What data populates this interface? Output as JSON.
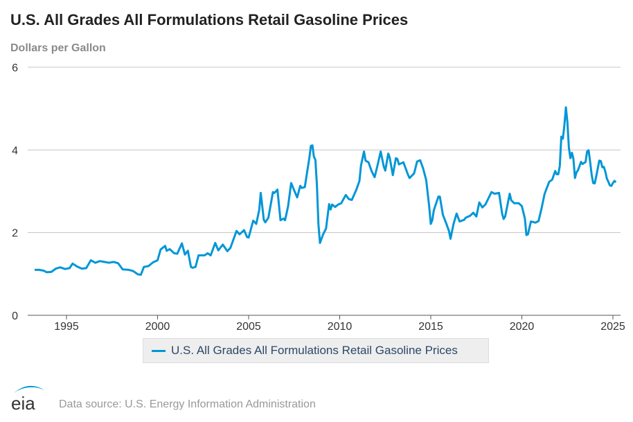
{
  "colors": {
    "line": "#0096d7",
    "grid": "#c4c4c4",
    "axis": "#555555",
    "logo": "#0096d7"
  },
  "chart_data": {
    "type": "line",
    "title": "U.S. All Grades All Formulations Retail Gasoline Prices",
    "ylabel": "Dollars per Gallon",
    "xlabel": "",
    "ylim": [
      0,
      6
    ],
    "yticks": [
      "0",
      "2",
      "4",
      "6"
    ],
    "xticks": [
      "1995",
      "2000",
      "2005",
      "2010",
      "2015",
      "2020",
      "2025"
    ],
    "grid": true,
    "legend_position": "bottom",
    "series": [
      {
        "name": "U.S. All Grades All Formulations Retail Gasoline Prices",
        "points": [
          [
            "1993-04",
            1.1
          ],
          [
            "1993-07",
            1.1
          ],
          [
            "1993-10",
            1.08
          ],
          [
            "1993-12",
            1.04
          ],
          [
            "1994-03",
            1.05
          ],
          [
            "1994-06",
            1.13
          ],
          [
            "1994-09",
            1.16
          ],
          [
            "1994-12",
            1.12
          ],
          [
            "1995-03",
            1.14
          ],
          [
            "1995-05",
            1.25
          ],
          [
            "1995-08",
            1.18
          ],
          [
            "1995-11",
            1.13
          ],
          [
            "1996-02",
            1.14
          ],
          [
            "1996-05",
            1.33
          ],
          [
            "1996-08",
            1.27
          ],
          [
            "1996-11",
            1.31
          ],
          [
            "1997-02",
            1.29
          ],
          [
            "1997-05",
            1.27
          ],
          [
            "1997-08",
            1.29
          ],
          [
            "1997-11",
            1.26
          ],
          [
            "1998-02",
            1.11
          ],
          [
            "1998-06",
            1.1
          ],
          [
            "1998-09",
            1.07
          ],
          [
            "1998-12",
            0.99
          ],
          [
            "1999-02",
            0.98
          ],
          [
            "1999-04",
            1.17
          ],
          [
            "1999-07",
            1.19
          ],
          [
            "1999-10",
            1.28
          ],
          [
            "2000-01",
            1.33
          ],
          [
            "2000-03",
            1.59
          ],
          [
            "2000-06",
            1.68
          ],
          [
            "2000-07",
            1.56
          ],
          [
            "2000-09",
            1.6
          ],
          [
            "2000-12",
            1.5
          ],
          [
            "2001-02",
            1.49
          ],
          [
            "2001-05",
            1.74
          ],
          [
            "2001-07",
            1.47
          ],
          [
            "2001-09",
            1.56
          ],
          [
            "2001-11",
            1.17
          ],
          [
            "2001-12",
            1.15
          ],
          [
            "2002-02",
            1.17
          ],
          [
            "2002-04",
            1.45
          ],
          [
            "2002-08",
            1.45
          ],
          [
            "2002-10",
            1.5
          ],
          [
            "2002-12",
            1.45
          ],
          [
            "2003-03",
            1.75
          ],
          [
            "2003-05",
            1.57
          ],
          [
            "2003-08",
            1.71
          ],
          [
            "2003-11",
            1.55
          ],
          [
            "2004-01",
            1.63
          ],
          [
            "2004-05",
            2.04
          ],
          [
            "2004-07",
            1.96
          ],
          [
            "2004-10",
            2.06
          ],
          [
            "2004-12",
            1.89
          ],
          [
            "2005-01",
            1.88
          ],
          [
            "2005-04",
            2.29
          ],
          [
            "2005-06",
            2.21
          ],
          [
            "2005-08",
            2.55
          ],
          [
            "2005-09",
            2.96
          ],
          [
            "2005-11",
            2.31
          ],
          [
            "2005-12",
            2.25
          ],
          [
            "2006-02",
            2.36
          ],
          [
            "2006-05",
            2.98
          ],
          [
            "2006-06",
            2.96
          ],
          [
            "2006-08",
            3.04
          ],
          [
            "2006-10",
            2.3
          ],
          [
            "2006-12",
            2.34
          ],
          [
            "2007-01",
            2.3
          ],
          [
            "2007-03",
            2.64
          ],
          [
            "2007-05",
            3.2
          ],
          [
            "2007-07",
            3.02
          ],
          [
            "2007-09",
            2.85
          ],
          [
            "2007-11",
            3.13
          ],
          [
            "2007-12",
            3.08
          ],
          [
            "2008-02",
            3.1
          ],
          [
            "2008-05",
            3.81
          ],
          [
            "2008-06",
            4.1
          ],
          [
            "2008-07",
            4.11
          ],
          [
            "2008-08",
            3.84
          ],
          [
            "2008-09",
            3.76
          ],
          [
            "2008-10",
            3.15
          ],
          [
            "2008-11",
            2.2
          ],
          [
            "2008-12",
            1.75
          ],
          [
            "2009-02",
            1.95
          ],
          [
            "2009-04",
            2.1
          ],
          [
            "2009-06",
            2.69
          ],
          [
            "2009-07",
            2.56
          ],
          [
            "2009-08",
            2.68
          ],
          [
            "2009-10",
            2.62
          ],
          [
            "2009-12",
            2.68
          ],
          [
            "2010-02",
            2.71
          ],
          [
            "2010-05",
            2.91
          ],
          [
            "2010-07",
            2.81
          ],
          [
            "2010-09",
            2.79
          ],
          [
            "2010-12",
            3.04
          ],
          [
            "2011-02",
            3.25
          ],
          [
            "2011-03",
            3.62
          ],
          [
            "2011-05",
            3.96
          ],
          [
            "2011-06",
            3.74
          ],
          [
            "2011-08",
            3.7
          ],
          [
            "2011-10",
            3.49
          ],
          [
            "2011-12",
            3.34
          ],
          [
            "2012-02",
            3.64
          ],
          [
            "2012-04",
            3.96
          ],
          [
            "2012-06",
            3.6
          ],
          [
            "2012-07",
            3.5
          ],
          [
            "2012-09",
            3.91
          ],
          [
            "2012-10",
            3.81
          ],
          [
            "2012-12",
            3.39
          ],
          [
            "2013-02",
            3.8
          ],
          [
            "2013-03",
            3.78
          ],
          [
            "2013-04",
            3.65
          ],
          [
            "2013-07",
            3.7
          ],
          [
            "2013-10",
            3.4
          ],
          [
            "2013-11",
            3.32
          ],
          [
            "2014-02",
            3.43
          ],
          [
            "2014-04",
            3.72
          ],
          [
            "2014-06",
            3.75
          ],
          [
            "2014-08",
            3.55
          ],
          [
            "2014-10",
            3.27
          ],
          [
            "2014-12",
            2.62
          ],
          [
            "2015-01",
            2.21
          ],
          [
            "2015-02",
            2.3
          ],
          [
            "2015-03",
            2.54
          ],
          [
            "2015-06",
            2.87
          ],
          [
            "2015-07",
            2.87
          ],
          [
            "2015-09",
            2.43
          ],
          [
            "2015-11",
            2.24
          ],
          [
            "2016-01",
            2.04
          ],
          [
            "2016-02",
            1.85
          ],
          [
            "2016-04",
            2.21
          ],
          [
            "2016-06",
            2.46
          ],
          [
            "2016-08",
            2.27
          ],
          [
            "2016-11",
            2.31
          ],
          [
            "2016-12",
            2.36
          ],
          [
            "2017-03",
            2.41
          ],
          [
            "2017-05",
            2.48
          ],
          [
            "2017-07",
            2.39
          ],
          [
            "2017-09",
            2.73
          ],
          [
            "2017-11",
            2.61
          ],
          [
            "2018-01",
            2.68
          ],
          [
            "2018-05",
            2.98
          ],
          [
            "2018-07",
            2.94
          ],
          [
            "2018-10",
            2.96
          ],
          [
            "2018-12",
            2.46
          ],
          [
            "2019-01",
            2.33
          ],
          [
            "2019-02",
            2.39
          ],
          [
            "2019-05",
            2.94
          ],
          [
            "2019-06",
            2.78
          ],
          [
            "2019-08",
            2.71
          ],
          [
            "2019-11",
            2.71
          ],
          [
            "2020-01",
            2.64
          ],
          [
            "2020-03",
            2.34
          ],
          [
            "2020-04",
            1.94
          ],
          [
            "2020-05",
            1.96
          ],
          [
            "2020-07",
            2.27
          ],
          [
            "2020-10",
            2.24
          ],
          [
            "2020-12",
            2.28
          ],
          [
            "2021-02",
            2.59
          ],
          [
            "2021-04",
            2.94
          ],
          [
            "2021-07",
            3.23
          ],
          [
            "2021-09",
            3.28
          ],
          [
            "2021-11",
            3.49
          ],
          [
            "2021-12",
            3.41
          ],
          [
            "2022-01",
            3.41
          ],
          [
            "2022-02",
            3.61
          ],
          [
            "2022-03",
            4.32
          ],
          [
            "2022-04",
            4.27
          ],
          [
            "2022-05",
            4.59
          ],
          [
            "2022-06",
            5.03
          ],
          [
            "2022-07",
            4.67
          ],
          [
            "2022-08",
            4.06
          ],
          [
            "2022-09",
            3.8
          ],
          [
            "2022-10",
            3.93
          ],
          [
            "2022-11",
            3.78
          ],
          [
            "2022-12",
            3.32
          ],
          [
            "2023-01",
            3.46
          ],
          [
            "2023-02",
            3.51
          ],
          [
            "2023-04",
            3.71
          ],
          [
            "2023-05",
            3.66
          ],
          [
            "2023-07",
            3.71
          ],
          [
            "2023-08",
            3.96
          ],
          [
            "2023-09",
            3.99
          ],
          [
            "2023-10",
            3.71
          ],
          [
            "2023-11",
            3.4
          ],
          [
            "2023-12",
            3.2
          ],
          [
            "2024-01",
            3.19
          ],
          [
            "2024-02",
            3.36
          ],
          [
            "2024-04",
            3.74
          ],
          [
            "2024-05",
            3.73
          ],
          [
            "2024-06",
            3.58
          ],
          [
            "2024-07",
            3.59
          ],
          [
            "2024-08",
            3.48
          ],
          [
            "2024-09",
            3.31
          ],
          [
            "2024-10",
            3.23
          ],
          [
            "2024-11",
            3.14
          ],
          [
            "2024-12",
            3.13
          ],
          [
            "2025-01",
            3.2
          ],
          [
            "2025-02",
            3.25
          ],
          [
            "2025-03",
            3.22
          ]
        ]
      }
    ]
  },
  "footer": {
    "logo_text": "eia",
    "source": "Data source: U.S. Energy Information Administration"
  }
}
